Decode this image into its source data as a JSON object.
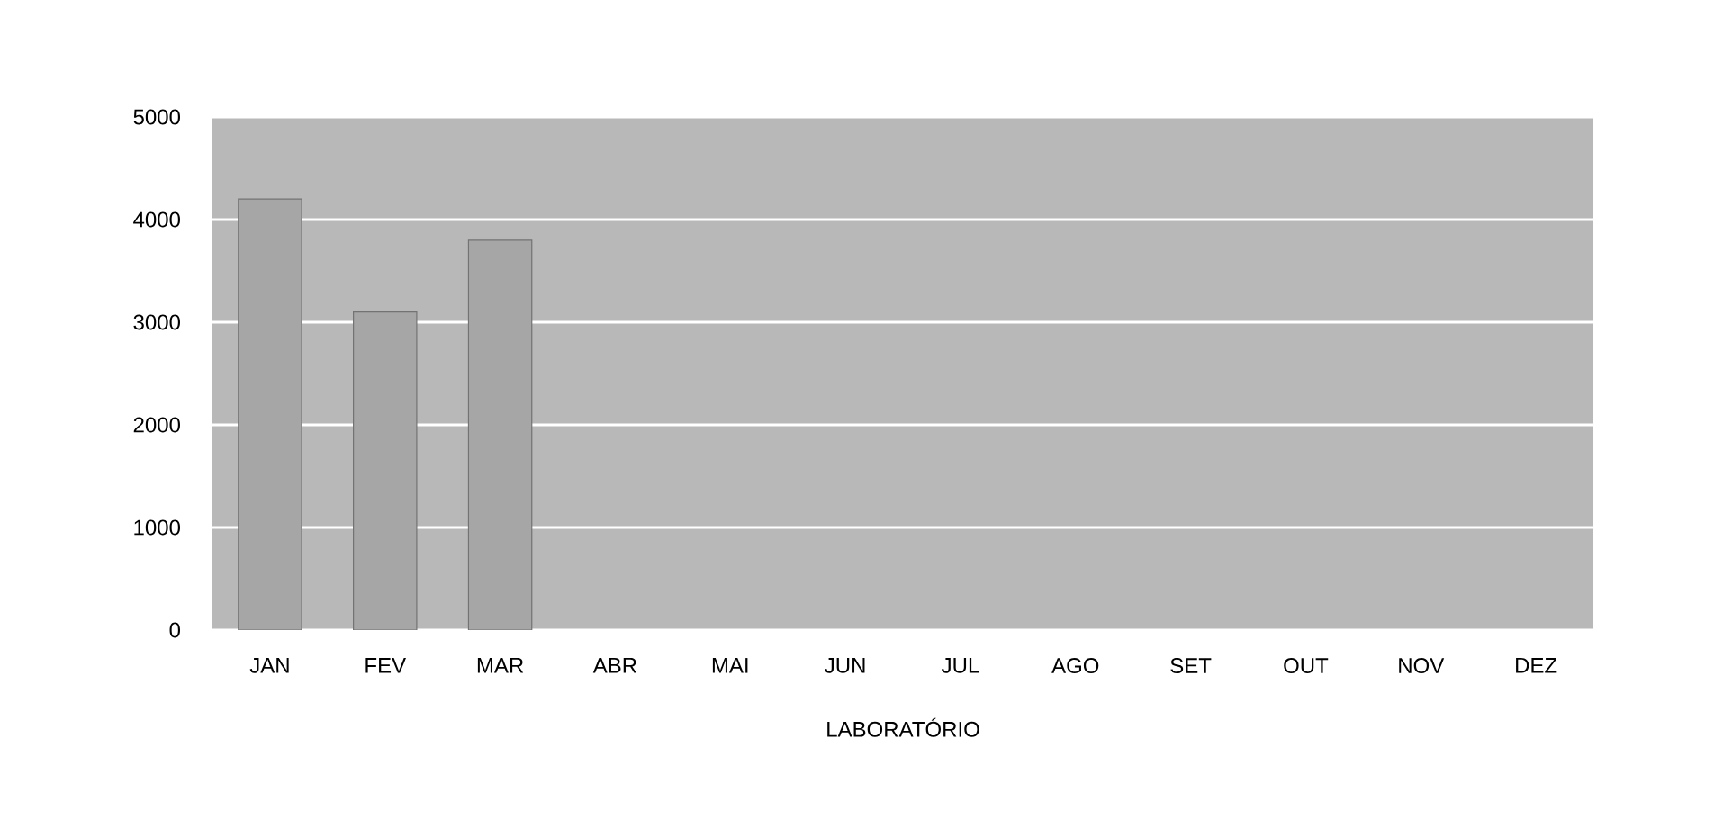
{
  "chart_data": {
    "type": "bar",
    "xlabel": "LABORATÓRIO",
    "categories": [
      "JAN",
      "FEV",
      "MAR",
      "ABR",
      "MAI",
      "JUN",
      "JUL",
      "AGO",
      "SET",
      "OUT",
      "NOV",
      "DEZ"
    ],
    "values": [
      4200,
      3100,
      3800,
      null,
      null,
      null,
      null,
      null,
      null,
      null,
      null,
      null
    ],
    "color": "#a6a6a6",
    "ylim": [
      0,
      5000
    ],
    "yticks": [
      0,
      1000,
      2000,
      3000,
      4000,
      5000
    ],
    "grid": "y"
  }
}
